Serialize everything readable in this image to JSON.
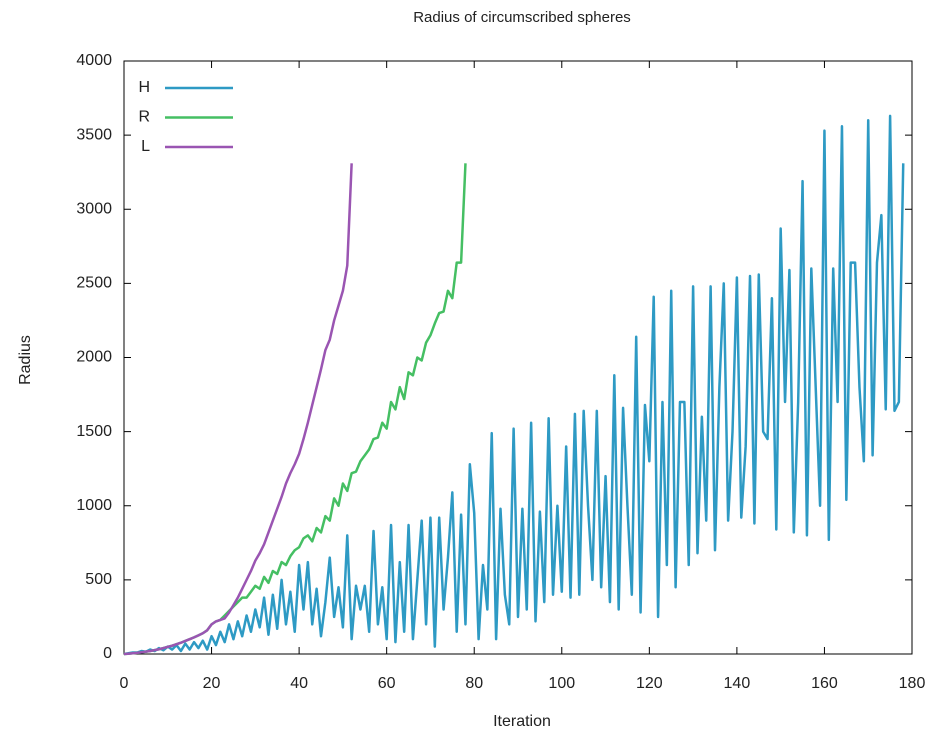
{
  "chart_data": {
    "type": "line",
    "title": "Radius of circumscribed spheres",
    "xlabel": "Iteration",
    "ylabel": "Radius",
    "xlim": [
      0,
      180
    ],
    "xticks": [
      0,
      20,
      40,
      60,
      80,
      100,
      120,
      140,
      160,
      180
    ],
    "ylim": [
      0,
      4000
    ],
    "yticks": [
      0,
      500,
      1000,
      1500,
      2000,
      2500,
      3000,
      3500,
      4000
    ],
    "legend": "top-left",
    "series": [
      {
        "name": "H",
        "color": "#2e9ac4",
        "x": [
          0,
          1,
          2,
          3,
          4,
          5,
          6,
          7,
          8,
          9,
          10,
          11,
          12,
          13,
          14,
          15,
          16,
          17,
          18,
          19,
          20,
          21,
          22,
          23,
          24,
          25,
          26,
          27,
          28,
          29,
          30,
          31,
          32,
          33,
          34,
          35,
          36,
          37,
          38,
          39,
          40,
          41,
          42,
          43,
          44,
          45,
          46,
          47,
          48,
          49,
          50,
          51,
          52,
          53,
          54,
          55,
          56,
          57,
          58,
          59,
          60,
          61,
          62,
          63,
          64,
          65,
          66,
          67,
          68,
          69,
          70,
          71,
          72,
          73,
          74,
          75,
          76,
          77,
          78,
          79,
          80,
          81,
          82,
          83,
          84,
          85,
          86,
          87,
          88,
          89,
          90,
          91,
          92,
          93,
          94,
          95,
          96,
          97,
          98,
          99,
          100,
          101,
          102,
          103,
          104,
          105,
          106,
          107,
          108,
          109,
          110,
          111,
          112,
          113,
          114,
          115,
          116,
          117,
          118,
          119,
          120,
          121,
          122,
          123,
          124,
          125,
          126,
          127,
          128,
          129,
          130,
          131,
          132,
          133,
          134,
          135,
          136,
          137,
          138,
          139,
          140,
          141,
          142,
          143,
          144,
          145,
          146,
          147,
          148,
          149,
          150,
          151,
          152,
          153,
          154,
          155,
          156,
          157,
          158,
          159,
          160,
          161,
          162,
          163,
          164,
          165,
          166,
          167,
          168,
          169,
          170,
          171,
          172,
          173,
          174,
          175,
          176,
          177,
          178
        ],
        "values": [
          0,
          5,
          10,
          10,
          20,
          15,
          30,
          20,
          40,
          25,
          50,
          30,
          60,
          20,
          70,
          30,
          80,
          40,
          90,
          30,
          120,
          60,
          150,
          80,
          200,
          100,
          220,
          120,
          260,
          150,
          300,
          180,
          380,
          130,
          400,
          170,
          500,
          200,
          420,
          150,
          600,
          300,
          620,
          200,
          440,
          120,
          350,
          650,
          250,
          450,
          180,
          800,
          100,
          460,
          300,
          460,
          150,
          830,
          200,
          450,
          100,
          870,
          80,
          620,
          150,
          870,
          100,
          500,
          900,
          200,
          920,
          50,
          920,
          300,
          650,
          1090,
          150,
          940,
          200,
          1280,
          950,
          100,
          600,
          300,
          1490,
          100,
          980,
          400,
          200,
          1520,
          250,
          980,
          300,
          1560,
          220,
          960,
          350,
          1590,
          400,
          1000,
          420,
          1400,
          380,
          1620,
          400,
          1640,
          1000,
          500,
          1640,
          450,
          1200,
          350,
          1880,
          300,
          1660,
          1000,
          400,
          2140,
          280,
          1680,
          1300,
          2410,
          250,
          1700,
          600,
          2450,
          450,
          1700,
          1700,
          600,
          2480,
          680,
          1600,
          900,
          2480,
          700,
          1800,
          2500,
          900,
          1500,
          2540,
          920,
          1400,
          2550,
          880,
          2560,
          1500,
          1450,
          2400,
          840,
          2870,
          1700,
          2590,
          820,
          1700,
          3190,
          800,
          2600,
          1800,
          1000,
          3530,
          770,
          2600,
          1700,
          3560,
          1040,
          2640,
          2640,
          1800,
          1300,
          3600,
          1340,
          2640,
          2960,
          1650,
          3630,
          1640,
          1700,
          3310
        ]
      },
      {
        "name": "R",
        "color": "#45bf63",
        "x": [
          0,
          1,
          2,
          3,
          4,
          5,
          6,
          7,
          8,
          9,
          10,
          11,
          12,
          13,
          14,
          15,
          16,
          17,
          18,
          19,
          20,
          21,
          22,
          23,
          24,
          25,
          26,
          27,
          28,
          29,
          30,
          31,
          32,
          33,
          34,
          35,
          36,
          37,
          38,
          39,
          40,
          41,
          42,
          43,
          44,
          45,
          46,
          47,
          48,
          49,
          50,
          51,
          52,
          53,
          54,
          55,
          56,
          57,
          58,
          59,
          60,
          61,
          62,
          63,
          64,
          65,
          66,
          67,
          68,
          69,
          70,
          71,
          72,
          73,
          74,
          75,
          76,
          77,
          78
        ],
        "values": [
          0,
          2,
          5,
          8,
          12,
          16,
          20,
          26,
          32,
          40,
          48,
          56,
          66,
          76,
          88,
          100,
          112,
          126,
          140,
          160,
          200,
          220,
          230,
          260,
          290,
          320,
          350,
          380,
          380,
          420,
          460,
          440,
          520,
          480,
          560,
          540,
          620,
          600,
          660,
          700,
          720,
          780,
          800,
          760,
          850,
          820,
          930,
          900,
          1050,
          1000,
          1150,
          1100,
          1220,
          1230,
          1300,
          1340,
          1380,
          1450,
          1460,
          1560,
          1520,
          1700,
          1650,
          1800,
          1720,
          1900,
          1880,
          2000,
          1980,
          2100,
          2150,
          2230,
          2300,
          2310,
          2450,
          2400,
          2640,
          2640,
          3310
        ]
      },
      {
        "name": "L",
        "color": "#9a55b2",
        "x": [
          0,
          1,
          2,
          3,
          4,
          5,
          6,
          7,
          8,
          9,
          10,
          11,
          12,
          13,
          14,
          15,
          16,
          17,
          18,
          19,
          20,
          21,
          22,
          23,
          24,
          25,
          26,
          27,
          28,
          29,
          30,
          31,
          32,
          33,
          34,
          35,
          36,
          37,
          38,
          39,
          40,
          41,
          42,
          43,
          44,
          45,
          46,
          47,
          48,
          49,
          50,
          51,
          52
        ],
        "values": [
          0,
          2,
          5,
          8,
          12,
          16,
          20,
          26,
          32,
          40,
          48,
          56,
          66,
          76,
          88,
          100,
          112,
          126,
          140,
          160,
          200,
          220,
          230,
          240,
          280,
          330,
          380,
          440,
          500,
          560,
          630,
          680,
          740,
          820,
          900,
          980,
          1060,
          1150,
          1220,
          1280,
          1350,
          1450,
          1560,
          1680,
          1800,
          1920,
          2050,
          2120,
          2250,
          2350,
          2450,
          2620,
          3310
        ]
      }
    ]
  }
}
